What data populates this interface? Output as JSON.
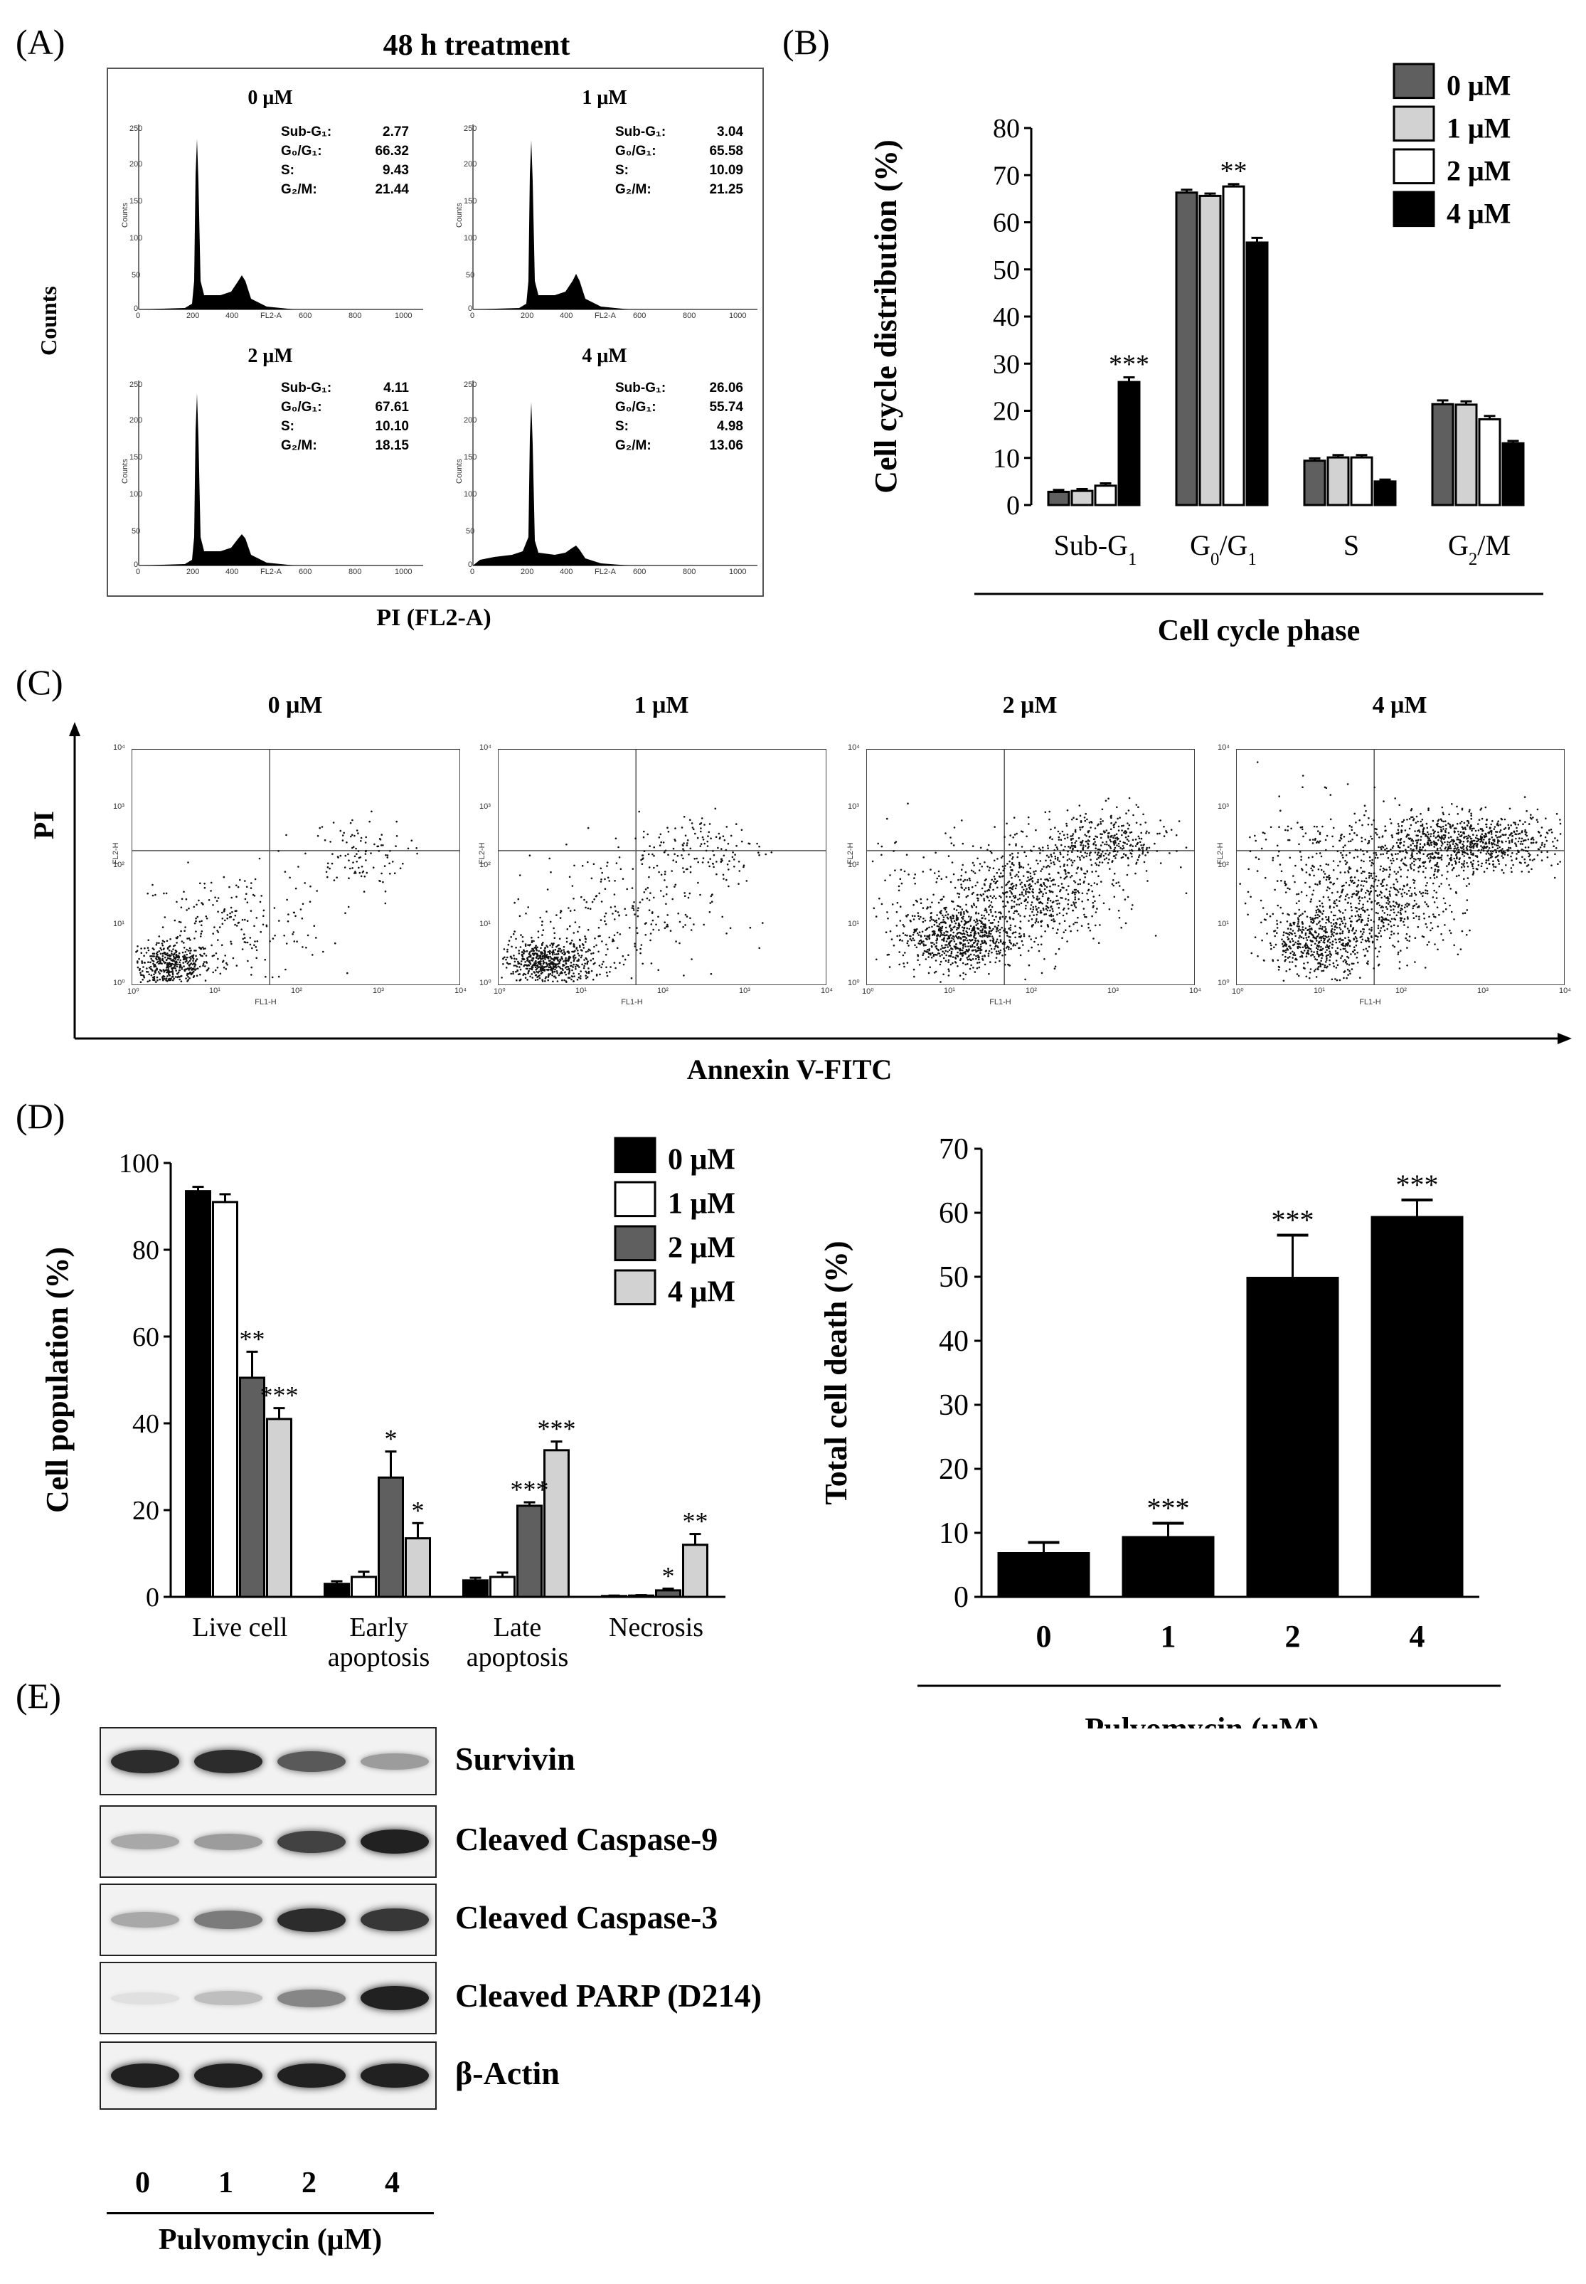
{
  "panelA": {
    "label": "(A)",
    "title": "48 h treatment",
    "ylabel": "Counts",
    "xlabel": "PI (FL2-A)",
    "hist_axis": {
      "y": "Counts",
      "x": "FL2-A",
      "xticks": [
        "0",
        "200",
        "400",
        "600",
        "800",
        "1000"
      ],
      "yticks": [
        "0",
        "50",
        "100",
        "150",
        "200",
        "250"
      ]
    },
    "subplots": [
      {
        "conc": "0 μM",
        "stats": [
          [
            "Sub-G₁:",
            "2.77"
          ],
          [
            "G₀/G₁:",
            "66.32"
          ],
          [
            "S:",
            "9.43"
          ],
          [
            "G₂/M:",
            "21.44"
          ]
        ]
      },
      {
        "conc": "1 μM",
        "stats": [
          [
            "Sub-G₁:",
            "3.04"
          ],
          [
            "G₀/G₁:",
            "65.58"
          ],
          [
            "S:",
            "10.09"
          ],
          [
            "G₂/M:",
            "21.25"
          ]
        ]
      },
      {
        "conc": "2 μM",
        "stats": [
          [
            "Sub-G₁:",
            "4.11"
          ],
          [
            "G₀/G₁:",
            "67.61"
          ],
          [
            "S:",
            "10.10"
          ],
          [
            "G₂/M:",
            "18.15"
          ]
        ]
      },
      {
        "conc": "4 μM",
        "stats": [
          [
            "Sub-G₁:",
            "26.06"
          ],
          [
            "G₀/G₁:",
            "55.74"
          ],
          [
            "S:",
            "4.98"
          ],
          [
            "G₂/M:",
            "13.06"
          ]
        ]
      }
    ]
  },
  "panelB": {
    "label": "(B)"
  },
  "panelC": {
    "label": "(C)",
    "ylabel": "PI",
    "xlabel": "Annexin V-FITC",
    "concs": [
      "0 μM",
      "1 μM",
      "2 μM",
      "4 μM"
    ],
    "axis_labels": {
      "x": "FL1-H",
      "y": "FL2-H"
    },
    "dec": {
      "x": [
        "10⁰",
        "10¹",
        "10²",
        "10³",
        "10⁴"
      ],
      "y": [
        "10⁰",
        "10¹",
        "10²",
        "10³",
        "10⁴"
      ]
    }
  },
  "panelD": {
    "label": "(D)"
  },
  "panelE": {
    "label": "(E)",
    "proteins": [
      "Survivin",
      "Cleaved Caspase-9",
      "Cleaved Caspase-3",
      "Cleaved PARP (D214)",
      "β-Actin"
    ],
    "lanes": [
      "0",
      "1",
      "2",
      "4"
    ],
    "xlabel": "Pulvomycin (μM)",
    "band_intensity": [
      [
        0.85,
        0.85,
        0.65,
        0.35
      ],
      [
        0.3,
        0.35,
        0.75,
        0.9
      ],
      [
        0.3,
        0.5,
        0.85,
        0.8
      ],
      [
        0.05,
        0.2,
        0.45,
        0.9
      ],
      [
        0.9,
        0.9,
        0.9,
        0.9
      ]
    ]
  },
  "colors": {
    "dark": "#5f5f5f",
    "light": "#d2d2d2",
    "white": "#ffffff",
    "black": "#000000"
  },
  "chart_data": [
    {
      "type": "bar",
      "panel": "B",
      "categories": [
        "Sub-G₁",
        "G₀/G₁",
        "S",
        "G₂/M"
      ],
      "series": [
        {
          "name": "0 μM",
          "values": [
            2.8,
            66.3,
            9.4,
            21.4
          ],
          "errors": [
            0.4,
            0.6,
            0.5,
            0.8
          ]
        },
        {
          "name": "1 μM",
          "values": [
            3.0,
            65.6,
            10.1,
            21.3
          ],
          "errors": [
            0.4,
            0.5,
            0.5,
            0.7
          ]
        },
        {
          "name": "2 μM",
          "values": [
            4.1,
            67.6,
            10.1,
            18.2
          ],
          "errors": [
            0.5,
            0.5,
            0.5,
            0.7
          ]
        },
        {
          "name": "4 μM",
          "values": [
            26.1,
            55.7,
            5.0,
            13.1
          ],
          "errors": [
            1.0,
            1.0,
            0.4,
            0.5
          ]
        }
      ],
      "annotations": [
        {
          "category": 1,
          "series": 2,
          "text": "**"
        },
        {
          "category": 0,
          "series": 3,
          "text": "***"
        }
      ],
      "ylabel": "Cell cycle distribution (%)",
      "xlabel": "Cell cycle phase",
      "ylim": [
        0,
        80
      ],
      "yticks": [
        "0",
        "10",
        "20",
        "30",
        "40",
        "50",
        "60",
        "70",
        "80"
      ],
      "legend": "top-right"
    },
    {
      "type": "bar",
      "panel": "D-left",
      "categories": [
        "Live cell",
        "Early|apoptosis",
        "Late|apoptosis",
        "Necrosis"
      ],
      "series": [
        {
          "name": "0 μM",
          "values": [
            93.5,
            3.0,
            3.8,
            0.2
          ],
          "errors": [
            1.0,
            0.6,
            0.6,
            0.1
          ]
        },
        {
          "name": "1 μM",
          "values": [
            91.0,
            4.6,
            4.6,
            0.3
          ],
          "errors": [
            1.8,
            1.2,
            1.0,
            0.1
          ]
        },
        {
          "name": "2 μM",
          "values": [
            50.5,
            27.5,
            21.0,
            1.5
          ],
          "errors": [
            6.0,
            6.0,
            0.8,
            0.4
          ]
        },
        {
          "name": "4 μM",
          "values": [
            41.0,
            13.5,
            33.8,
            12.0
          ],
          "errors": [
            2.5,
            3.5,
            2.0,
            2.5
          ]
        }
      ],
      "annotations": [
        {
          "category": 0,
          "series": 2,
          "text": "**"
        },
        {
          "category": 0,
          "series": 3,
          "text": "***"
        },
        {
          "category": 1,
          "series": 2,
          "text": "*"
        },
        {
          "category": 1,
          "series": 3,
          "text": "*"
        },
        {
          "category": 2,
          "series": 2,
          "text": "***"
        },
        {
          "category": 2,
          "series": 3,
          "text": "***"
        },
        {
          "category": 3,
          "series": 2,
          "text": "*"
        },
        {
          "category": 3,
          "series": 3,
          "text": "**"
        }
      ],
      "ylabel": "Cell population (%)",
      "ylim": [
        0,
        100
      ],
      "yticks": [
        "0",
        "20",
        "40",
        "60",
        "80",
        "100"
      ],
      "legend": "top-right"
    },
    {
      "type": "bar",
      "panel": "D-right",
      "categories": [
        "0",
        "1",
        "2",
        "4"
      ],
      "values": [
        7.0,
        9.5,
        50.0,
        59.5
      ],
      "errors": [
        1.5,
        2.0,
        6.5,
        2.5
      ],
      "annotations": [
        "",
        "***",
        "***",
        "***"
      ],
      "ylabel": "Total cell death (%)",
      "xlabel": "Pulvomycin (μM)",
      "ylim": [
        0,
        70
      ],
      "yticks": [
        "0",
        "10",
        "20",
        "30",
        "40",
        "50",
        "60",
        "70"
      ]
    }
  ]
}
